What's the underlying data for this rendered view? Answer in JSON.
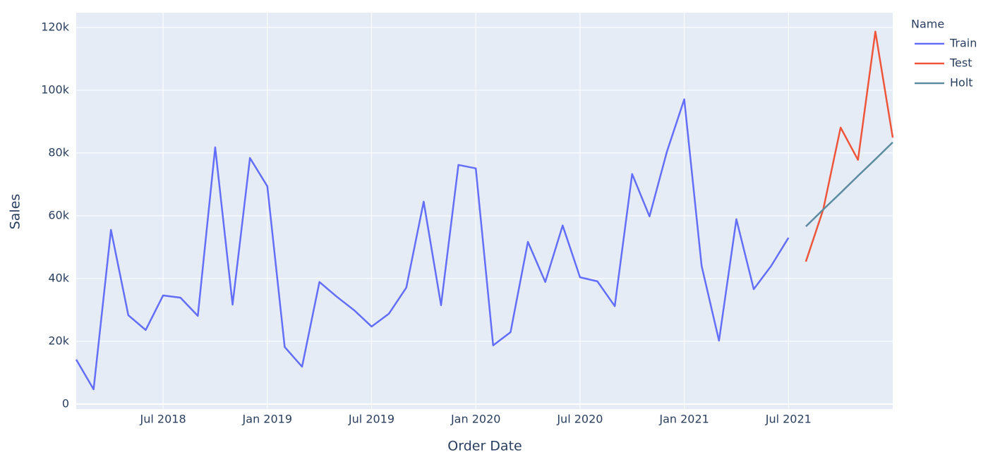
{
  "chart_data": {
    "type": "line",
    "x_title": "Order Date",
    "y_title": "Sales",
    "legend_title": "Name",
    "legend_position": "right",
    "grid": true,
    "x": [
      "2018-02",
      "2018-03",
      "2018-04",
      "2018-05",
      "2018-06",
      "2018-07",
      "2018-08",
      "2018-09",
      "2018-10",
      "2018-11",
      "2018-12",
      "2019-01",
      "2019-02",
      "2019-03",
      "2019-04",
      "2019-05",
      "2019-06",
      "2019-07",
      "2019-08",
      "2019-09",
      "2019-10",
      "2019-11",
      "2019-12",
      "2020-01",
      "2020-02",
      "2020-03",
      "2020-04",
      "2020-05",
      "2020-06",
      "2020-07",
      "2020-08",
      "2020-09",
      "2020-10",
      "2020-11",
      "2020-12",
      "2021-01",
      "2021-02",
      "2021-03",
      "2021-04",
      "2021-05",
      "2021-06",
      "2021-07",
      "2021-08",
      "2021-09",
      "2021-10",
      "2021-11",
      "2021-12",
      "2022-01"
    ],
    "xlim": [
      "2018-02",
      "2022-01"
    ],
    "xticks": [
      {
        "value": "2018-07",
        "label": "Jul 2018"
      },
      {
        "value": "2019-01",
        "label": "Jan 2019"
      },
      {
        "value": "2019-07",
        "label": "Jul 2019"
      },
      {
        "value": "2020-01",
        "label": "Jan 2020"
      },
      {
        "value": "2020-07",
        "label": "Jul 2020"
      },
      {
        "value": "2021-01",
        "label": "Jan 2021"
      },
      {
        "value": "2021-07",
        "label": "Jul 2021"
      }
    ],
    "ylim": [
      -1600,
      124700
    ],
    "yticks": [
      0,
      {
        "value": 20000,
        "label": "20k"
      },
      {
        "value": 40000,
        "label": "40k"
      },
      {
        "value": 60000,
        "label": "60k"
      },
      {
        "value": 80000,
        "label": "80k"
      },
      {
        "value": 100000,
        "label": "100k"
      },
      {
        "value": 120000,
        "label": "120k"
      }
    ],
    "series": [
      {
        "name": "Train",
        "color": "#636efa",
        "values": [
          14200,
          4700,
          55500,
          28300,
          23600,
          34600,
          33900,
          28100,
          81800,
          31700,
          78400,
          69400,
          18200,
          11900,
          38900,
          34200,
          29900,
          24700,
          28800,
          37100,
          64500,
          31500,
          76200,
          75100,
          18700,
          22900,
          51700,
          38900,
          56900,
          40400,
          39100,
          31200,
          73300,
          59800,
          80400,
          97100,
          44000,
          20200,
          58900,
          36600,
          44000,
          53000,
          null,
          null,
          null,
          null,
          null,
          null
        ]
      },
      {
        "name": "Test",
        "color": "#ef553b",
        "values": [
          null,
          null,
          null,
          null,
          null,
          null,
          null,
          null,
          null,
          null,
          null,
          null,
          null,
          null,
          null,
          null,
          null,
          null,
          null,
          null,
          null,
          null,
          null,
          null,
          null,
          null,
          null,
          null,
          null,
          null,
          null,
          null,
          null,
          null,
          null,
          null,
          null,
          null,
          null,
          null,
          null,
          null,
          45400,
          62000,
          88100,
          77800,
          118700,
          84900
        ]
      },
      {
        "name": "Holt",
        "color": "#5d8ca0",
        "values": [
          null,
          null,
          null,
          null,
          null,
          null,
          null,
          null,
          null,
          null,
          null,
          null,
          null,
          null,
          null,
          null,
          null,
          null,
          null,
          null,
          null,
          null,
          null,
          null,
          null,
          null,
          null,
          null,
          null,
          null,
          null,
          null,
          null,
          null,
          null,
          null,
          null,
          null,
          null,
          null,
          null,
          null,
          56600,
          62000,
          67300,
          72700,
          78000,
          83400
        ]
      }
    ]
  }
}
